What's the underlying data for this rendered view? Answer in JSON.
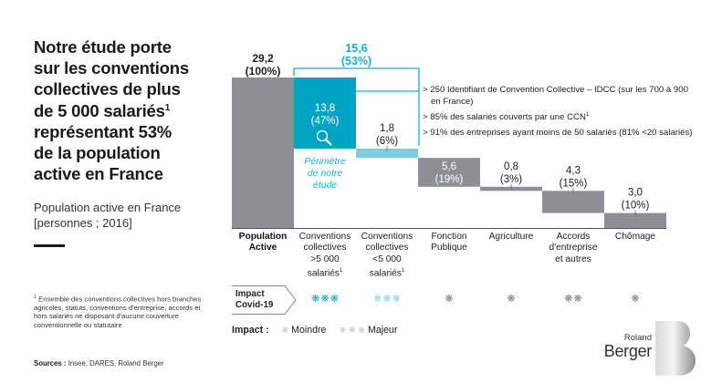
{
  "headline": {
    "line1": "Notre étude porte",
    "line2": "sur les conventions",
    "line3": "collectives de plus",
    "line4": "de 5 000 salariés",
    "line4_sup": "1",
    "line5": "représentant 53%",
    "line6": "de la population",
    "line7": "active en France"
  },
  "subtitle": {
    "line1": "Population active en France",
    "line2": "[personnes ; 2016]"
  },
  "footnote": {
    "marker": "1",
    "text": " Ensemble des conventions collectives hors branches agricoles, statuts, conventions d'entreprise, accords et hors salariés ne disposant d'aucune couverture conventionnelle ou statutaire"
  },
  "sources": {
    "label": "Sources :",
    "text": " Insee, DARES, Roland Berger"
  },
  "bullets": [
    {
      "text": "> 250 Identifiant de Convention Collective – IDCC (sur les 700 à 900 en France)",
      "sup": ""
    },
    {
      "text": "> 85% des salariés couverts par une CCN",
      "sup": "1"
    },
    {
      "text": "> 91% des entreprises ayant moins de 50 salariés (81% <20 salariés)",
      "sup": ""
    }
  ],
  "categories": [
    {
      "line1": "Population",
      "line2": "Active",
      "line3": "",
      "line4": "",
      "sup": ""
    },
    {
      "line1": "Conventions",
      "line2": "collectives",
      "line3": ">5 000",
      "line4": "salariés",
      "sup": "1"
    },
    {
      "line1": "Conventions",
      "line2": "collectives",
      "line3": "<5 000",
      "line4": "salariés",
      "sup": "1"
    },
    {
      "line1": "Fonction",
      "line2": "Publique",
      "line3": "",
      "line4": "",
      "sup": ""
    },
    {
      "line1": "Agriculture",
      "line2": "",
      "line3": "",
      "line4": "",
      "sup": ""
    },
    {
      "line1": "Accords",
      "line2": "d'entreprise",
      "line3": "et autres",
      "line4": "",
      "sup": ""
    },
    {
      "line1": "Chômage",
      "line2": "",
      "line3": "",
      "line4": "",
      "sup": ""
    }
  ],
  "covid": {
    "label_line1": "Impact",
    "label_line2": "Covid-19",
    "impacts": [
      {
        "count": 3,
        "level": "major-dark"
      },
      {
        "count": 3,
        "level": "major-light"
      },
      {
        "count": 1,
        "level": "minor"
      },
      {
        "count": 1,
        "level": "minor"
      },
      {
        "count": 2,
        "level": "minor"
      },
      {
        "count": 1,
        "level": "minor"
      }
    ],
    "flake_glyph": "❋"
  },
  "legend": {
    "title": "Impact :",
    "minor_label": "Moindre",
    "major_label": "Majeur"
  },
  "logo": {
    "line1": "Roland",
    "line2": "Berger",
    "mark": "B"
  },
  "colors": {
    "grey_bar": "#8c8f96",
    "teal_dark": "#00a3c4",
    "teal_light": "#7fcde0",
    "bracket": "#1aaed0",
    "flake_dark": "#12a5c6",
    "flake_light": "#8fd3e6",
    "flake_grey": "#777b82"
  },
  "chart_data": {
    "type": "bar",
    "subtype": "waterfall",
    "title": "Population active en France [personnes ; 2016]",
    "unit": "millions",
    "categories": [
      "Population Active",
      "Conventions collectives >5 000 salariés",
      "Conventions collectives <5 000 salariés",
      "Fonction Publique",
      "Agriculture",
      "Accords d'entreprise et autres",
      "Chômage"
    ],
    "values": [
      29.2,
      13.8,
      1.8,
      5.6,
      0.8,
      4.3,
      3.0
    ],
    "value_labels": [
      "29,2",
      "13,8",
      "1,8",
      "5,6",
      "0,8",
      "4,3",
      "3,0"
    ],
    "pct_labels": [
      "(100%)",
      "(47%)",
      "(6%)",
      "(19%)",
      "(3%)",
      "(15%)",
      "(10%)"
    ],
    "is_total": [
      true,
      false,
      false,
      false,
      false,
      false,
      false
    ],
    "ylim": [
      0,
      29.2
    ],
    "bracket": {
      "value_label": "15,6",
      "pct_label": "(53%)",
      "spans": [
        1,
        2
      ]
    },
    "annotation": {
      "line1": "Périmètre",
      "line2": "de notre",
      "line3": "étude"
    },
    "grid": false
  }
}
